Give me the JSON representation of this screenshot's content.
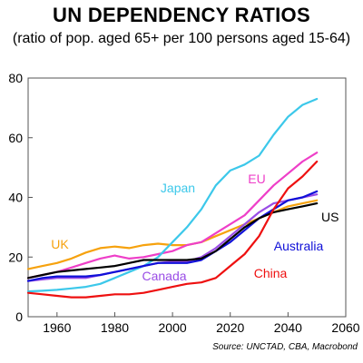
{
  "chart_data": {
    "type": "line",
    "title": "UN DEPENDENCY RATIOS",
    "subtitle": "(ratio of pop. aged 65+ per 100 persons aged 15-64)",
    "source": "Source: UNCTAD, CBA, Macrobond",
    "xlabel": "",
    "ylabel": "",
    "xlim": [
      1950,
      2060
    ],
    "ylim": [
      0,
      80
    ],
    "xticks": [
      1960,
      1980,
      2000,
      2020,
      2040,
      2060
    ],
    "yticks": [
      0,
      20,
      40,
      60,
      80
    ],
    "grid": false,
    "legend": "inline labels",
    "series": [
      {
        "name": "Japan",
        "color": "#3cc8ea",
        "x": [
          1950,
          1955,
          1960,
          1965,
          1970,
          1975,
          1980,
          1985,
          1990,
          1995,
          2000,
          2005,
          2010,
          2015,
          2020,
          2025,
          2030,
          2035,
          2040,
          2045,
          2050
        ],
        "values": [
          8.5,
          8.7,
          9,
          9.5,
          10,
          11,
          13,
          15,
          17,
          20,
          25,
          30,
          36,
          44,
          49,
          51,
          54,
          61,
          67,
          71,
          73
        ]
      },
      {
        "name": "EU",
        "color": "#ee3fc8",
        "x": [
          1950,
          1955,
          1960,
          1965,
          1970,
          1975,
          1980,
          1985,
          1990,
          1995,
          2000,
          2005,
          2010,
          2015,
          2020,
          2025,
          2030,
          2035,
          2040,
          2045,
          2050
        ],
        "values": [
          13,
          14,
          15,
          16.5,
          18,
          19.5,
          20.5,
          19.5,
          20,
          21,
          22,
          24,
          25,
          28,
          31,
          34,
          39,
          44,
          48,
          52,
          55
        ]
      },
      {
        "name": "UK",
        "color": "#f6a20e",
        "x": [
          1950,
          1955,
          1960,
          1965,
          1970,
          1975,
          1980,
          1985,
          1990,
          1995,
          2000,
          2005,
          2010,
          2015,
          2020,
          2025,
          2030,
          2035,
          2040,
          2045,
          2050
        ],
        "values": [
          16,
          17,
          18,
          19.5,
          21.5,
          23,
          23.5,
          23,
          24,
          24.5,
          24,
          24,
          25,
          27,
          29,
          31,
          33,
          35,
          37,
          38,
          39
        ]
      },
      {
        "name": "US",
        "color": "#000000",
        "x": [
          1950,
          1955,
          1960,
          1965,
          1970,
          1975,
          1980,
          1985,
          1990,
          1995,
          2000,
          2005,
          2010,
          2015,
          2020,
          2025,
          2030,
          2035,
          2040,
          2045,
          2050
        ],
        "values": [
          13,
          14,
          15,
          15.5,
          16,
          16.5,
          17,
          18,
          19,
          19,
          19,
          19,
          19.5,
          22,
          26,
          30,
          33,
          35,
          36,
          37,
          38
        ]
      },
      {
        "name": "Canada",
        "color": "#9a4de6",
        "x": [
          1950,
          1955,
          1960,
          1965,
          1970,
          1975,
          1980,
          1985,
          1990,
          1995,
          2000,
          2005,
          2010,
          2015,
          2020,
          2025,
          2030,
          2035,
          2040,
          2045,
          2050
        ],
        "values": [
          12,
          12.5,
          13,
          13,
          13,
          14,
          15,
          16,
          17,
          18,
          18.5,
          18.5,
          20,
          23,
          27,
          31,
          35,
          38,
          39,
          40,
          41
        ]
      },
      {
        "name": "Australia",
        "color": "#1010d8",
        "x": [
          1950,
          1955,
          1960,
          1965,
          1970,
          1975,
          1980,
          1985,
          1990,
          1995,
          2000,
          2005,
          2010,
          2015,
          2020,
          2025,
          2030,
          2035,
          2040,
          2045,
          2050
        ],
        "values": [
          12,
          13,
          13.5,
          13.5,
          13.5,
          14,
          15,
          16,
          17,
          18,
          18,
          18,
          19,
          22,
          25,
          29,
          33,
          36,
          39,
          40,
          42
        ]
      },
      {
        "name": "China",
        "color": "#ee1010",
        "x": [
          1950,
          1955,
          1960,
          1965,
          1970,
          1975,
          1980,
          1985,
          1990,
          1995,
          2000,
          2005,
          2010,
          2015,
          2020,
          2025,
          2030,
          2035,
          2040,
          2045,
          2050
        ],
        "values": [
          8,
          7.5,
          7,
          6.5,
          6.5,
          7,
          7.5,
          7.5,
          8,
          9,
          10,
          11,
          11.5,
          13,
          17,
          21,
          27,
          36,
          43,
          47,
          52
        ]
      }
    ]
  }
}
